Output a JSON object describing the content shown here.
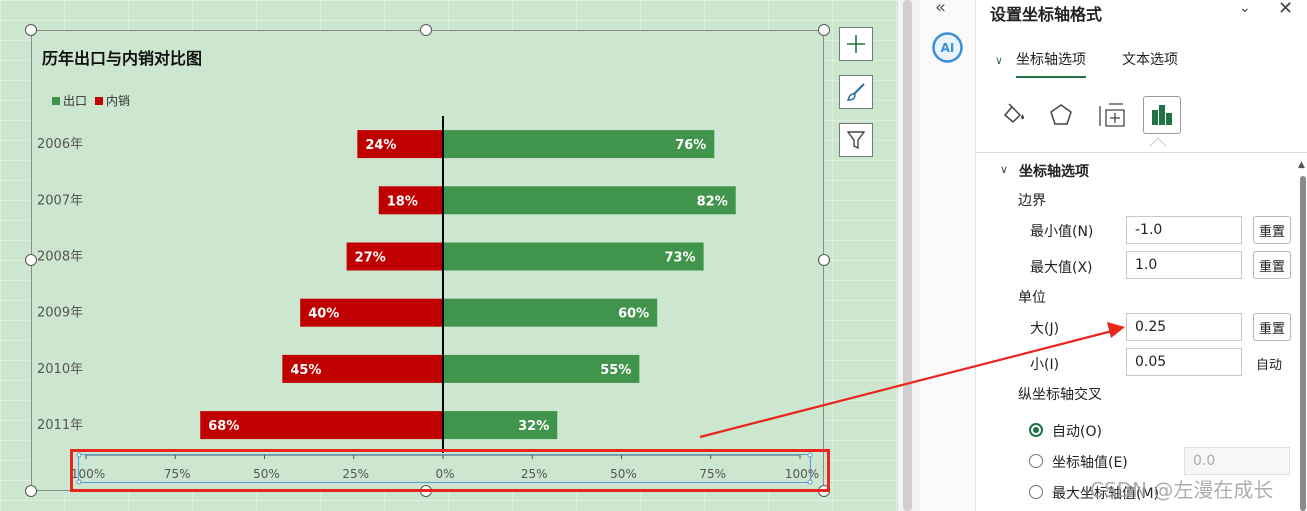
{
  "chart": {
    "title": "历年出口与内销对比图",
    "legend": [
      {
        "label": "出口",
        "color": "#41944b"
      },
      {
        "label": "内销",
        "color": "#c00000"
      }
    ]
  },
  "chart_data": {
    "type": "bar",
    "orientation": "horizontal",
    "categories": [
      "2006年",
      "2007年",
      "2008年",
      "2009年",
      "2010年",
      "2011年"
    ],
    "series": [
      {
        "name": "出口",
        "values": [
          0.76,
          0.82,
          0.73,
          0.6,
          0.55,
          0.32
        ],
        "labels": [
          "76%",
          "82%",
          "73%",
          "60%",
          "55%",
          "32%"
        ],
        "color": "#41944b"
      },
      {
        "name": "内销",
        "values": [
          -0.24,
          -0.18,
          -0.27,
          -0.4,
          -0.45,
          -0.68
        ],
        "labels": [
          "24%",
          "18%",
          "27%",
          "40%",
          "45%",
          "68%"
        ],
        "color": "#c00000"
      }
    ],
    "xlim": [
      -1.0,
      1.0
    ],
    "xticks": [
      -1.0,
      -0.75,
      -0.5,
      -0.25,
      0,
      0.25,
      0.5,
      0.75,
      1.0
    ],
    "xtick_labels": [
      "100%",
      "75%",
      "50%",
      "25%",
      "0%",
      "25%",
      "50%",
      "75%",
      "100%"
    ],
    "grid": false,
    "legend_position": "top-left"
  },
  "chart_tools": [
    {
      "icon": "plus-icon"
    },
    {
      "icon": "brush-icon"
    },
    {
      "icon": "filter-icon"
    }
  ],
  "strip": {
    "collapse": "«",
    "ai_label": "AI"
  },
  "pane": {
    "title": "设置坐标轴格式",
    "dropdown_glyph": "⌄",
    "close_glyph": "✕",
    "tabs": [
      "坐标轴选项",
      "文本选项"
    ],
    "section": "坐标轴选项",
    "bounds_label": "边界",
    "min_label": "最小值(N)",
    "min_value": "-1.0",
    "max_label": "最大值(X)",
    "max_value": "1.0",
    "reset": "重置",
    "units_label": "单位",
    "major_label": "大(J)",
    "major_value": "0.25",
    "minor_label": "小(I)",
    "minor_value": "0.05",
    "auto": "自动",
    "cross_label": "纵坐标轴交叉",
    "cross_options": [
      "自动(O)",
      "坐标轴值(E)",
      "最大坐标轴值(M)"
    ],
    "cross_value": "0.0"
  },
  "annotation": {
    "highlight_color": "#e8261d"
  },
  "watermark": "CSDN @左漫在成长"
}
